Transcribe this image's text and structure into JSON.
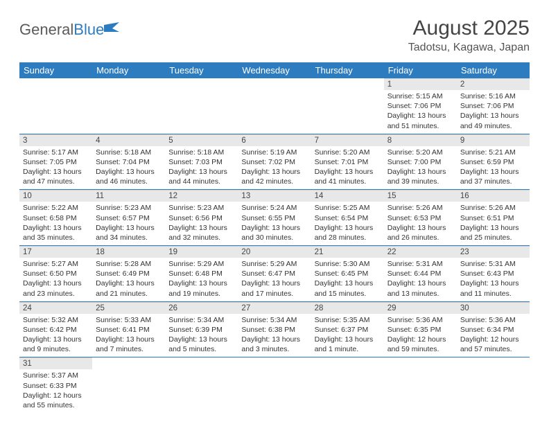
{
  "logo": {
    "text1": "General",
    "text2": "Blue"
  },
  "title": "August 2025",
  "location": "Tadotsu, Kagawa, Japan",
  "colors": {
    "header_bg": "#2e7cc0",
    "header_text": "#ffffff",
    "daynum_bg": "#e8e8e8",
    "row_divider": "#2e7cc0",
    "body_text": "#333333"
  },
  "dayNames": [
    "Sunday",
    "Monday",
    "Tuesday",
    "Wednesday",
    "Thursday",
    "Friday",
    "Saturday"
  ],
  "weeks": [
    [
      null,
      null,
      null,
      null,
      null,
      {
        "n": "1",
        "sr": "5:15 AM",
        "ss": "7:06 PM",
        "dl": "13 hours and 51 minutes."
      },
      {
        "n": "2",
        "sr": "5:16 AM",
        "ss": "7:06 PM",
        "dl": "13 hours and 49 minutes."
      }
    ],
    [
      {
        "n": "3",
        "sr": "5:17 AM",
        "ss": "7:05 PM",
        "dl": "13 hours and 47 minutes."
      },
      {
        "n": "4",
        "sr": "5:18 AM",
        "ss": "7:04 PM",
        "dl": "13 hours and 46 minutes."
      },
      {
        "n": "5",
        "sr": "5:18 AM",
        "ss": "7:03 PM",
        "dl": "13 hours and 44 minutes."
      },
      {
        "n": "6",
        "sr": "5:19 AM",
        "ss": "7:02 PM",
        "dl": "13 hours and 42 minutes."
      },
      {
        "n": "7",
        "sr": "5:20 AM",
        "ss": "7:01 PM",
        "dl": "13 hours and 41 minutes."
      },
      {
        "n": "8",
        "sr": "5:20 AM",
        "ss": "7:00 PM",
        "dl": "13 hours and 39 minutes."
      },
      {
        "n": "9",
        "sr": "5:21 AM",
        "ss": "6:59 PM",
        "dl": "13 hours and 37 minutes."
      }
    ],
    [
      {
        "n": "10",
        "sr": "5:22 AM",
        "ss": "6:58 PM",
        "dl": "13 hours and 35 minutes."
      },
      {
        "n": "11",
        "sr": "5:23 AM",
        "ss": "6:57 PM",
        "dl": "13 hours and 34 minutes."
      },
      {
        "n": "12",
        "sr": "5:23 AM",
        "ss": "6:56 PM",
        "dl": "13 hours and 32 minutes."
      },
      {
        "n": "13",
        "sr": "5:24 AM",
        "ss": "6:55 PM",
        "dl": "13 hours and 30 minutes."
      },
      {
        "n": "14",
        "sr": "5:25 AM",
        "ss": "6:54 PM",
        "dl": "13 hours and 28 minutes."
      },
      {
        "n": "15",
        "sr": "5:26 AM",
        "ss": "6:53 PM",
        "dl": "13 hours and 26 minutes."
      },
      {
        "n": "16",
        "sr": "5:26 AM",
        "ss": "6:51 PM",
        "dl": "13 hours and 25 minutes."
      }
    ],
    [
      {
        "n": "17",
        "sr": "5:27 AM",
        "ss": "6:50 PM",
        "dl": "13 hours and 23 minutes."
      },
      {
        "n": "18",
        "sr": "5:28 AM",
        "ss": "6:49 PM",
        "dl": "13 hours and 21 minutes."
      },
      {
        "n": "19",
        "sr": "5:29 AM",
        "ss": "6:48 PM",
        "dl": "13 hours and 19 minutes."
      },
      {
        "n": "20",
        "sr": "5:29 AM",
        "ss": "6:47 PM",
        "dl": "13 hours and 17 minutes."
      },
      {
        "n": "21",
        "sr": "5:30 AM",
        "ss": "6:45 PM",
        "dl": "13 hours and 15 minutes."
      },
      {
        "n": "22",
        "sr": "5:31 AM",
        "ss": "6:44 PM",
        "dl": "13 hours and 13 minutes."
      },
      {
        "n": "23",
        "sr": "5:31 AM",
        "ss": "6:43 PM",
        "dl": "13 hours and 11 minutes."
      }
    ],
    [
      {
        "n": "24",
        "sr": "5:32 AM",
        "ss": "6:42 PM",
        "dl": "13 hours and 9 minutes."
      },
      {
        "n": "25",
        "sr": "5:33 AM",
        "ss": "6:41 PM",
        "dl": "13 hours and 7 minutes."
      },
      {
        "n": "26",
        "sr": "5:34 AM",
        "ss": "6:39 PM",
        "dl": "13 hours and 5 minutes."
      },
      {
        "n": "27",
        "sr": "5:34 AM",
        "ss": "6:38 PM",
        "dl": "13 hours and 3 minutes."
      },
      {
        "n": "28",
        "sr": "5:35 AM",
        "ss": "6:37 PM",
        "dl": "13 hours and 1 minute."
      },
      {
        "n": "29",
        "sr": "5:36 AM",
        "ss": "6:35 PM",
        "dl": "12 hours and 59 minutes."
      },
      {
        "n": "30",
        "sr": "5:36 AM",
        "ss": "6:34 PM",
        "dl": "12 hours and 57 minutes."
      }
    ],
    [
      {
        "n": "31",
        "sr": "5:37 AM",
        "ss": "6:33 PM",
        "dl": "12 hours and 55 minutes."
      },
      null,
      null,
      null,
      null,
      null,
      null
    ]
  ],
  "labels": {
    "sunrise": "Sunrise:",
    "sunset": "Sunset:",
    "daylight": "Daylight:"
  }
}
